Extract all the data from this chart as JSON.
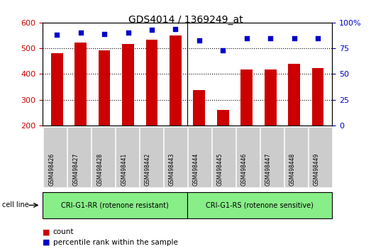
{
  "title": "GDS4014 / 1369249_at",
  "categories": [
    "GSM498426",
    "GSM498427",
    "GSM498428",
    "GSM498441",
    "GSM498442",
    "GSM498443",
    "GSM498444",
    "GSM498445",
    "GSM498446",
    "GSM498447",
    "GSM498448",
    "GSM498449"
  ],
  "bar_values": [
    482,
    522,
    493,
    516,
    534,
    551,
    337,
    261,
    418,
    417,
    440,
    423
  ],
  "percentile_values": [
    88,
    90,
    89,
    90,
    93,
    94,
    83,
    73,
    85,
    85,
    85,
    85
  ],
  "bar_color": "#cc0000",
  "percentile_color": "#0000cc",
  "ylim_left": [
    200,
    600
  ],
  "ylim_right": [
    0,
    100
  ],
  "yticks_left": [
    200,
    300,
    400,
    500,
    600
  ],
  "yticks_right": [
    0,
    25,
    50,
    75,
    100
  ],
  "group1_label": "CRI-G1-RR (rotenone resistant)",
  "group2_label": "CRI-G1-RS (rotenone sensitive)",
  "group1_count": 6,
  "group2_count": 6,
  "cell_line_label": "cell line",
  "legend_count_label": "count",
  "legend_percentile_label": "percentile rank within the sample",
  "group_bg_color": "#88ee88",
  "tick_label_bg": "#cccccc",
  "plot_bg": "#ffffff"
}
